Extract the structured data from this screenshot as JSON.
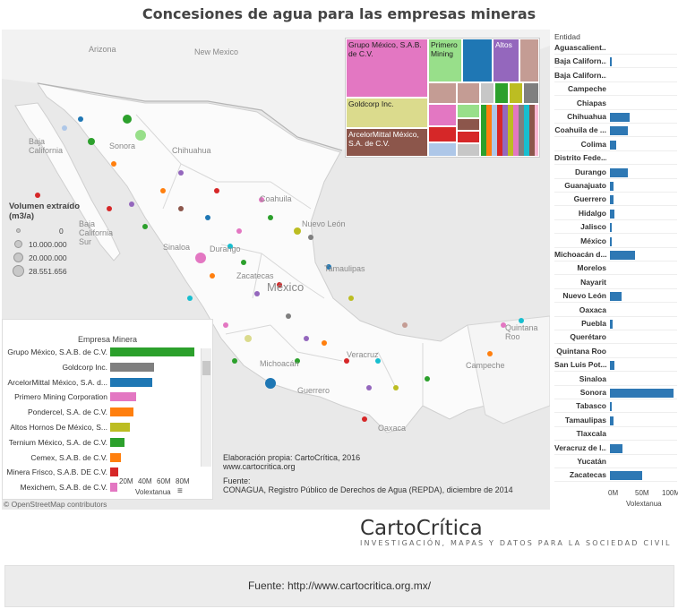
{
  "title": "Concesiones de agua para las empresas mineras",
  "map": {
    "places": [
      {
        "id": "arizona",
        "label": "Arizona"
      },
      {
        "id": "new-mexico",
        "label": "New Mexico"
      },
      {
        "id": "baja-california",
        "label": "Baja\nCalifornia"
      },
      {
        "id": "sonora",
        "label": "Sonora"
      },
      {
        "id": "chihuahua",
        "label": "Chihuahua"
      },
      {
        "id": "baja-california-sur",
        "label": "Baja\nCalifornia\nSur"
      },
      {
        "id": "coahuila",
        "label": "Coahuila"
      },
      {
        "id": "nuevo-leon",
        "label": "Nuevo León"
      },
      {
        "id": "sinaloa",
        "label": "Sinaloa"
      },
      {
        "id": "durango",
        "label": "Durango"
      },
      {
        "id": "zacatecas",
        "label": "Zacatecas"
      },
      {
        "id": "tamaulipas",
        "label": "Tamaulipas"
      },
      {
        "id": "mexico",
        "label": "México"
      },
      {
        "id": "michoacan",
        "label": "Michoacán"
      },
      {
        "id": "guerrero",
        "label": "Guerrero"
      },
      {
        "id": "veracruz",
        "label": "Veracruz"
      },
      {
        "id": "campeche",
        "label": "Campeche"
      },
      {
        "id": "quintana-roo",
        "label": "Quintana\nRoo"
      },
      {
        "id": "oaxaca",
        "label": "Oaxaca"
      }
    ],
    "attribution": "© OpenStreetMap contributors"
  },
  "legend": {
    "title": "Volumen extraído (m3/a)",
    "items": [
      "0",
      "10.000.000",
      "20.000.000",
      "28.551.656"
    ]
  },
  "credit": {
    "line1": "Elaboración propia: CartoCrítica, 2016",
    "line2": "www.cartocritica.org",
    "line3": "Fuente:",
    "line4": "CONAGUA, Registro Público de Derechos de Agua (REPDA), diciembre de 2014"
  },
  "treemap": {
    "labels": {
      "grupo_mexico": "Grupo México, S.A.B. de C.V.",
      "primero": "Primero Mining",
      "altos": "Altos",
      "goldcorp": "Goldcorp Inc.",
      "arcelor": "ArcelorMittal México, S.A. de C.V."
    },
    "colors": {
      "grupo_mexico": "#e377c2",
      "primero": "#98df8a",
      "blue": "#1f77b4",
      "altos": "#9467bd",
      "tan": "#c49c94",
      "goldcorp": "#dbdb8d",
      "arcelor": "#8c564b",
      "red": "#d62728",
      "lightblue": "#aec7e8",
      "green": "#2ca02c",
      "orange": "#ff7f0e",
      "gray": "#c7c7c7",
      "darkgray": "#7f7f7f",
      "pink": "#f7b6d2",
      "olive": "#bcbd22",
      "cyan": "#17becf"
    }
  },
  "empresa_panel": {
    "header": "Empresa Minera",
    "x_axis_title": "Volextanua",
    "x_ticks": [
      "20M",
      "40M",
      "60M",
      "80M"
    ]
  },
  "entidad_panel": {
    "header": "Entidad",
    "x_axis_title": "Volextanua",
    "x_ticks": [
      "0M",
      "50M",
      "100M"
    ]
  },
  "chart_data": [
    {
      "type": "bar",
      "title": "Empresa Minera",
      "xlabel": "Volextanua",
      "categories": [
        "Grupo México, S.A.B. de C.V.",
        "Goldcorp Inc.",
        "ArcelorMittal México, S.A. d...",
        "Primero Mining Corporation",
        "Pondercel, S.A. de C.V.",
        "Altos Hornos De México, S...",
        "Ternium México, S.A. de C.V.",
        "Cemex, S.A.B. de C.V.",
        "Minera Frisco, S.A.B. DE C.V.",
        "Mexichem, S.A.B. de C.V."
      ],
      "values": [
        92,
        48,
        46,
        28,
        25,
        22,
        16,
        12,
        9,
        8
      ],
      "colors": [
        "#2ca02c",
        "#7f7f7f",
        "#1f77b4",
        "#e377c2",
        "#ff7f0e",
        "#bcbd22",
        "#2ca02c",
        "#ff7f0e",
        "#d62728",
        "#e377c2"
      ],
      "xlim": [
        0,
        95
      ]
    },
    {
      "type": "bar",
      "title": "Entidad",
      "xlabel": "Volextanua",
      "categories": [
        "Aguascalient...",
        "Baja Californ...",
        "Baja Californ...",
        "Campeche",
        "Chiapas",
        "Chihuahua",
        "Coahuila de ...",
        "Colima",
        "Distrito Fede...",
        "Durango",
        "Guanajuato",
        "Guerrero",
        "Hidalgo",
        "Jalisco",
        "México",
        "Michoacán d...",
        "Morelos",
        "Nayarit",
        "Nuevo León",
        "Oaxaca",
        "Puebla",
        "Querétaro",
        "Quintana Roo",
        "San Luis Pot...",
        "Sinaloa",
        "Sonora",
        "Tabasco",
        "Tamaulipas",
        "Tlaxcala",
        "Veracruz de l...",
        "Yucatán",
        "Zacatecas"
      ],
      "values": [
        0,
        1,
        0,
        0,
        0,
        36,
        33,
        11,
        0,
        33,
        6,
        7,
        9,
        2,
        2,
        46,
        0,
        0,
        22,
        0,
        5,
        0,
        0,
        9,
        0,
        118,
        3,
        6,
        0,
        24,
        0,
        60
      ],
      "color": "#2e78b4",
      "xlim": [
        0,
        120
      ]
    }
  ],
  "brand": {
    "name": "CartoCrítica",
    "tagline": "INVESTIGACIÓN, MAPAS Y DATOS PARA LA SOCIEDAD CIVIL"
  },
  "footer": "Fuente: http://www.cartocritica.org.mx/"
}
